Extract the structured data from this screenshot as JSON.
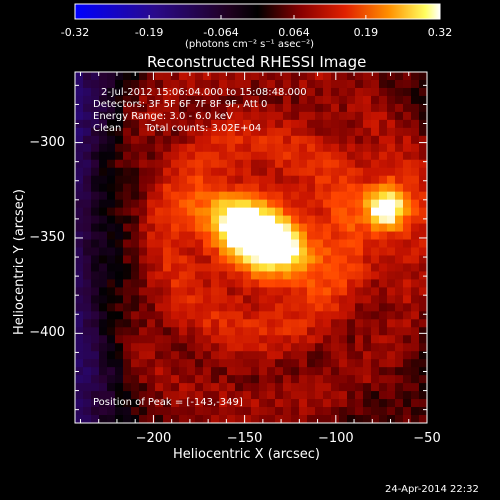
{
  "chart_data": {
    "type": "heatmap",
    "title": "Reconstructed RHESSI Image",
    "colorbar": {
      "ticks": [
        "-0.32",
        "-0.19",
        "-0.064",
        "0.064",
        "0.19",
        "0.32"
      ],
      "tick_values": [
        -0.32,
        -0.19,
        -0.064,
        0.064,
        0.19,
        0.32
      ],
      "range": [
        -0.32,
        0.32
      ],
      "units": "(photons cm⁻² s⁻¹ asec⁻²)",
      "colormap": "blue-black-red-orange-yellow-white"
    },
    "annotations": {
      "time_range": "2-Jul-2012 15:06:04.000 to 15:08:48.000",
      "detectors": "Detectors: 3F 5F 6F 7F 8F 9F, Att 0",
      "energy": "Energy Range: 3.0 - 6.0 keV",
      "algorithm": "Clean",
      "counts": "Total counts: 3.02E+04",
      "peak": "Position of Peak = [-143,-349]"
    },
    "xlabel": "Heliocentric X (arcsec)",
    "ylabel": "Heliocentric Y (arcsec)",
    "x_ticks": [
      -200,
      -150,
      -100,
      -50
    ],
    "y_ticks": [
      -300,
      -350,
      -400
    ],
    "xlim": [
      -243,
      -50
    ],
    "ylim": [
      -447,
      -263
    ],
    "sources": [
      {
        "name": "main",
        "x": -143,
        "y": -349,
        "peak": 0.32
      },
      {
        "name": "secondary",
        "x": -72,
        "y": -334,
        "peak": 0.27
      }
    ],
    "peak_position": [
      -143,
      -349
    ]
  },
  "footer": {
    "timestamp": "24-Apr-2014 22:32"
  },
  "colors": {
    "background": "#000000",
    "text": "#ffffff"
  }
}
